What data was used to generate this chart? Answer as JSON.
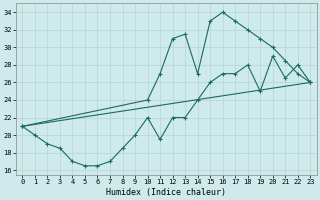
{
  "xlabel": "Humidex (Indice chaleur)",
  "background_color": "#ceeaea",
  "grid_color": "#b8d8d8",
  "line_color": "#1a6b5a",
  "xlim": [
    -0.5,
    23.5
  ],
  "ylim": [
    15.5,
    35.0
  ],
  "xticks": [
    0,
    1,
    2,
    3,
    4,
    5,
    6,
    7,
    8,
    9,
    10,
    11,
    12,
    13,
    14,
    15,
    16,
    17,
    18,
    19,
    20,
    21,
    22,
    23
  ],
  "yticks": [
    16,
    18,
    20,
    22,
    24,
    26,
    28,
    30,
    32,
    34
  ],
  "line1_x": [
    0,
    1,
    2,
    3,
    4,
    5,
    6,
    7,
    8,
    9,
    10,
    11,
    12,
    13,
    14,
    15,
    16,
    17,
    18,
    19,
    20,
    21,
    22,
    23
  ],
  "line1_y": [
    21,
    20,
    19,
    18.5,
    17,
    16.5,
    16.5,
    17,
    18.5,
    20,
    22,
    19.5,
    22,
    22,
    24,
    26,
    27,
    27,
    28,
    25,
    29,
    26.5,
    28,
    26
  ],
  "line2_x": [
    0,
    10,
    11,
    12,
    13,
    14,
    15,
    16,
    17,
    18,
    19,
    20,
    21,
    22,
    23
  ],
  "line2_y": [
    21,
    24,
    27,
    31,
    31.5,
    27,
    33,
    34,
    33,
    32,
    31,
    30,
    28.5,
    27,
    26
  ],
  "line3_x": [
    0,
    23
  ],
  "line3_y": [
    21,
    26
  ]
}
